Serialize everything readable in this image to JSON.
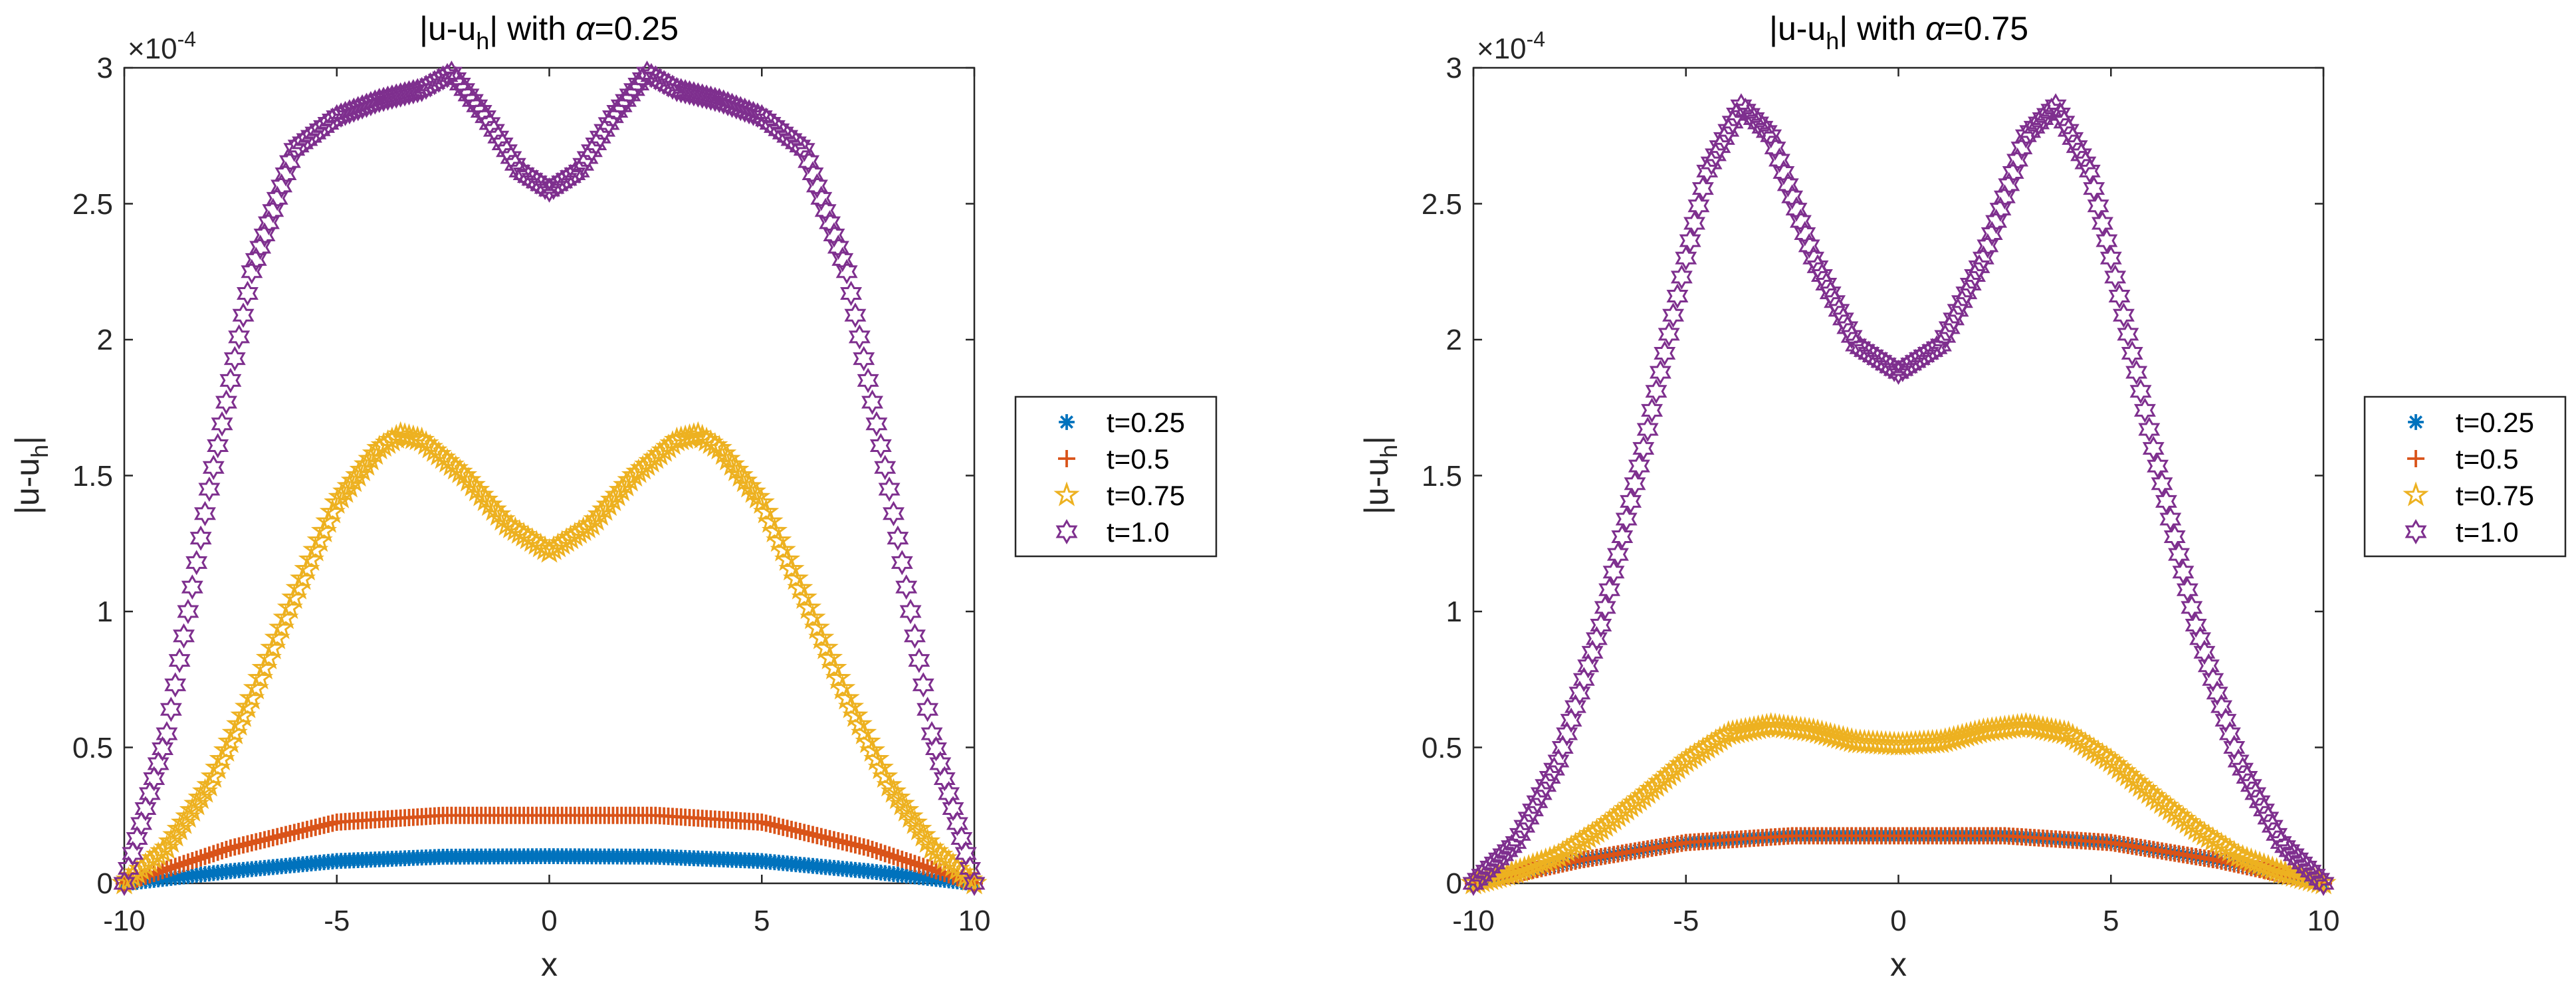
{
  "chart_data": [
    {
      "type": "scatter",
      "title": "|u-u_h| with α=0.25",
      "title_parts": {
        "pre": "|u-u",
        "sub": "h",
        "mid": "| with ",
        "greek": "α",
        "post": "=0.25"
      },
      "xlabel": "x",
      "ylabel": {
        "pre": "|u-u",
        "sub": "h",
        "post": "|"
      },
      "xlim": [
        -10,
        10
      ],
      "ylim": [
        0,
        3
      ],
      "y_exponent_label": {
        "base": "×10",
        "exp": "-4"
      },
      "xticks": [
        "-10",
        "-5",
        "0",
        "5",
        "10"
      ],
      "yticks": [
        "0",
        "0.5",
        "1",
        "1.5",
        "2",
        "2.5",
        "3"
      ],
      "n_points": 201,
      "legend_location": "outside-right",
      "series": [
        {
          "name": "t=0.25",
          "marker": "asterisk",
          "color": "#0072BD",
          "x": [
            -10,
            -7.5,
            -5,
            -2.5,
            0,
            2.5,
            5,
            7.5,
            10
          ],
          "y": [
            0,
            0.045,
            0.082,
            0.098,
            0.1,
            0.098,
            0.082,
            0.045,
            0
          ]
        },
        {
          "name": "t=0.5",
          "marker": "plus",
          "color": "#D95319",
          "x": [
            -10,
            -7.5,
            -5,
            -2.5,
            0,
            2.5,
            5,
            7.5,
            10
          ],
          "y": [
            0,
            0.13,
            0.225,
            0.25,
            0.25,
            0.25,
            0.225,
            0.13,
            0
          ]
        },
        {
          "name": "t=0.75",
          "marker": "pentagram",
          "color": "#EDB120",
          "x": [
            -10,
            -9,
            -8,
            -7,
            -6,
            -5,
            -4,
            -3.5,
            -3,
            -2,
            -1,
            0,
            1,
            2,
            3,
            3.5,
            4,
            5,
            6,
            7,
            8,
            9,
            10
          ],
          "y": [
            0,
            0.13,
            0.36,
            0.68,
            1.05,
            1.4,
            1.6,
            1.65,
            1.63,
            1.5,
            1.32,
            1.22,
            1.32,
            1.5,
            1.63,
            1.65,
            1.6,
            1.4,
            1.05,
            0.68,
            0.36,
            0.13,
            0
          ]
        },
        {
          "name": "t=1.0",
          "marker": "hexagram",
          "color": "#7E2F8E",
          "x": [
            -10,
            -9,
            -8,
            -7,
            -6,
            -5,
            -4,
            -3,
            -2.3,
            -1.5,
            -0.7,
            0,
            0.7,
            1.5,
            2.3,
            3,
            4,
            5,
            6,
            7,
            8,
            9,
            10
          ],
          "y": [
            0,
            0.55,
            1.45,
            2.25,
            2.7,
            2.82,
            2.88,
            2.92,
            2.98,
            2.82,
            2.62,
            2.55,
            2.62,
            2.82,
            2.98,
            2.92,
            2.88,
            2.82,
            2.7,
            2.25,
            1.45,
            0.55,
            0
          ]
        }
      ]
    },
    {
      "type": "scatter",
      "title": "|u-u_h| with α=0.75",
      "title_parts": {
        "pre": "|u-u",
        "sub": "h",
        "mid": "| with ",
        "greek": "α",
        "post": "=0.75"
      },
      "xlabel": "x",
      "ylabel": {
        "pre": "|u-u",
        "sub": "h",
        "post": "|"
      },
      "xlim": [
        -10,
        10
      ],
      "ylim": [
        0,
        3
      ],
      "y_exponent_label": {
        "base": "×10",
        "exp": "-4"
      },
      "xticks": [
        "-10",
        "-5",
        "0",
        "5",
        "10"
      ],
      "yticks": [
        "0",
        "0.5",
        "1",
        "1.5",
        "2",
        "2.5",
        "3"
      ],
      "n_points": 201,
      "legend_location": "outside-right",
      "series": [
        {
          "name": "t=0.25",
          "marker": "asterisk",
          "color": "#0072BD",
          "x": [
            -10,
            -7.5,
            -5,
            -2.5,
            0,
            2.5,
            5,
            7.5,
            10
          ],
          "y": [
            0,
            0.085,
            0.15,
            0.175,
            0.175,
            0.175,
            0.15,
            0.085,
            0
          ]
        },
        {
          "name": "t=0.5",
          "marker": "plus",
          "color": "#D95319",
          "x": [
            -10,
            -7.5,
            -5,
            -2.5,
            0,
            2.5,
            5,
            7.5,
            10
          ],
          "y": [
            0,
            0.085,
            0.15,
            0.175,
            0.175,
            0.175,
            0.15,
            0.085,
            0
          ]
        },
        {
          "name": "t=0.75",
          "marker": "pentagram",
          "color": "#EDB120",
          "x": [
            -10,
            -9,
            -8,
            -7,
            -6,
            -5,
            -4,
            -3,
            -2,
            -1,
            0,
            1,
            2,
            3,
            4,
            5,
            6,
            7,
            8,
            9,
            10
          ],
          "y": [
            0,
            0.04,
            0.1,
            0.2,
            0.32,
            0.45,
            0.55,
            0.58,
            0.56,
            0.52,
            0.51,
            0.52,
            0.56,
            0.58,
            0.55,
            0.45,
            0.32,
            0.2,
            0.1,
            0.04,
            0
          ]
        },
        {
          "name": "t=1.0",
          "marker": "hexagram",
          "color": "#7E2F8E",
          "x": [
            -10,
            -9,
            -8,
            -7,
            -6,
            -5,
            -4.5,
            -3.7,
            -3,
            -2,
            -1,
            0,
            1,
            2,
            3,
            3.7,
            4.5,
            5,
            6,
            7,
            8,
            9,
            10
          ],
          "y": [
            0,
            0.15,
            0.45,
            0.95,
            1.6,
            2.3,
            2.62,
            2.86,
            2.75,
            2.3,
            1.98,
            1.88,
            1.98,
            2.3,
            2.75,
            2.86,
            2.62,
            2.3,
            1.6,
            0.95,
            0.45,
            0.15,
            0
          ]
        }
      ]
    }
  ]
}
